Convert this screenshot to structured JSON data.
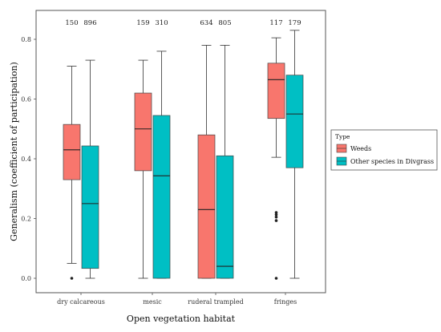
{
  "chart_data": {
    "type": "box",
    "xlabel": "Open vegetation habitat",
    "ylabel": "Generalism (coefficient of participation)",
    "ylim": [
      0,
      0.87
    ],
    "yticks": [
      "0.0",
      "0.2",
      "0.4",
      "0.6",
      "0.8"
    ],
    "categories": [
      "dry calcareous",
      "mesic",
      "ruderal trampled",
      "fringes"
    ],
    "legend": {
      "title": "Type",
      "position": "right",
      "items": [
        "Weeds",
        "Other species in Divgrass"
      ]
    },
    "colors": {
      "weeds": "#f8766d",
      "other": "#00bfc4"
    },
    "grid": false,
    "series": [
      {
        "name": "Weeds",
        "counts": [
          "150",
          "159",
          "634",
          "117"
        ],
        "boxes": [
          {
            "min": 0.05,
            "q1": 0.33,
            "median": 0.43,
            "q3": 0.515,
            "max": 0.71,
            "outliers": [
              0.0
            ]
          },
          {
            "min": 0.0,
            "q1": 0.36,
            "median": 0.5,
            "q3": 0.62,
            "max": 0.73,
            "outliers": []
          },
          {
            "min": 0.0,
            "q1": 0.0,
            "median": 0.23,
            "q3": 0.48,
            "max": 0.78,
            "outliers": []
          },
          {
            "min": 0.405,
            "q1": 0.535,
            "median": 0.665,
            "q3": 0.72,
            "max": 0.805,
            "outliers": [
              0.22,
              0.213,
              0.205,
              0.193,
              0.0
            ]
          }
        ]
      },
      {
        "name": "Other species in Divgrass",
        "counts": [
          "896",
          "310",
          "805",
          "179"
        ],
        "boxes": [
          {
            "min": 0.0,
            "q1": 0.033,
            "median": 0.25,
            "q3": 0.443,
            "max": 0.73,
            "outliers": []
          },
          {
            "min": 0.0,
            "q1": 0.0,
            "median": 0.343,
            "q3": 0.545,
            "max": 0.76,
            "outliers": []
          },
          {
            "min": 0.0,
            "q1": 0.0,
            "median": 0.04,
            "q3": 0.41,
            "max": 0.78,
            "outliers": []
          },
          {
            "min": 0.0,
            "q1": 0.37,
            "median": 0.55,
            "q3": 0.68,
            "max": 0.83,
            "outliers": []
          }
        ]
      }
    ]
  }
}
